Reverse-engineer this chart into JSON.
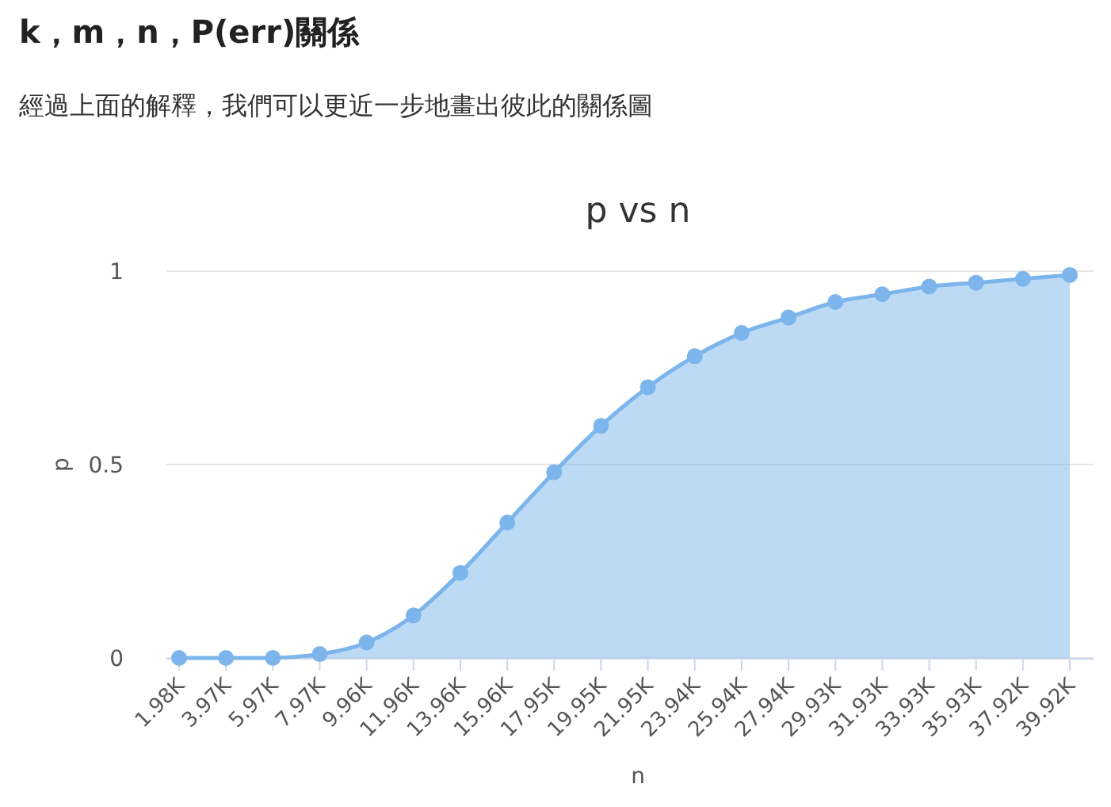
{
  "chart_data": {
    "type": "area",
    "title": "p vs n",
    "xlabel": "n",
    "ylabel": "p",
    "annotations": [
      "k，m，n，P(err)關係",
      "經過上面的解釋，我們可以更近一步地畫出彼此的關係圖"
    ],
    "categories": [
      "1.98K",
      "3.97K",
      "5.97K",
      "7.97K",
      "9.96K",
      "11.96K",
      "13.96K",
      "15.96K",
      "17.95K",
      "19.95K",
      "21.95K",
      "23.94K",
      "25.94K",
      "27.94K",
      "29.93K",
      "31.93K",
      "33.93K",
      "35.93K",
      "37.92K",
      "39.92K"
    ],
    "series": [
      {
        "color": "#7cb5ec",
        "values": [
          0,
          0,
          0,
          0.01,
          0.04,
          0.11,
          0.22,
          0.35,
          0.48,
          0.6,
          0.7,
          0.78,
          0.84,
          0.88,
          0.92,
          0.94,
          0.96,
          0.97,
          0.98,
          0.99
        ]
      }
    ],
    "ylim": [
      0,
      1
    ],
    "yticks": [
      0,
      0.5,
      1
    ],
    "grid": "y",
    "marker": "circle"
  }
}
